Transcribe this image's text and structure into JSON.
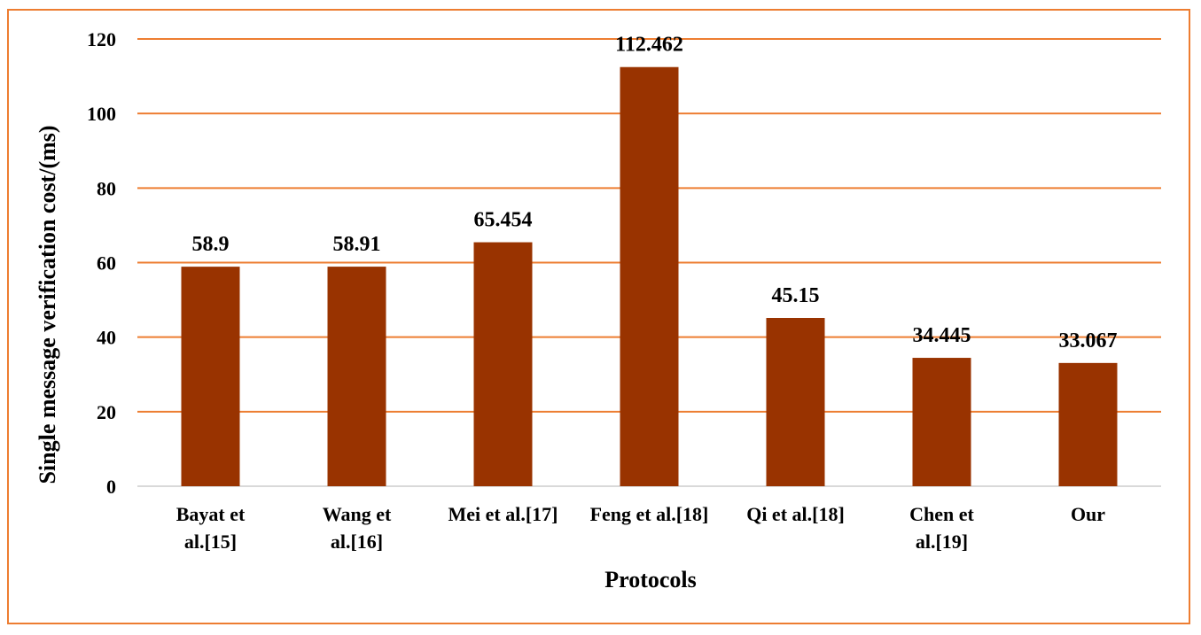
{
  "chart_data": {
    "type": "bar",
    "categories": [
      [
        "Bayat et",
        "al.[15]"
      ],
      [
        "Wang et",
        "al.[16]"
      ],
      [
        "Mei et al.[17]"
      ],
      [
        "Feng et al.[18]"
      ],
      [
        "Qi et al.[18]"
      ],
      [
        "Chen et",
        "al.[19]"
      ],
      [
        "Our"
      ]
    ],
    "values": [
      58.9,
      58.91,
      65.454,
      112.462,
      45.15,
      34.445,
      33.067
    ],
    "data_labels": [
      "58.9",
      "58.91",
      "65.454",
      "112.462",
      "45.15",
      "34.445",
      "33.067"
    ],
    "title": "",
    "xlabel": "Protocols",
    "ylabel": "Single message verification cost/(ms)",
    "ylim": [
      0,
      120
    ],
    "yticks": [
      0,
      20,
      40,
      60,
      80,
      100,
      120
    ],
    "grid": true,
    "legend": "none",
    "colors": {
      "bar": "#993300",
      "grid": "#ED7D31",
      "frame": "#ED7D31",
      "baseline": "#D9D9D9"
    }
  }
}
